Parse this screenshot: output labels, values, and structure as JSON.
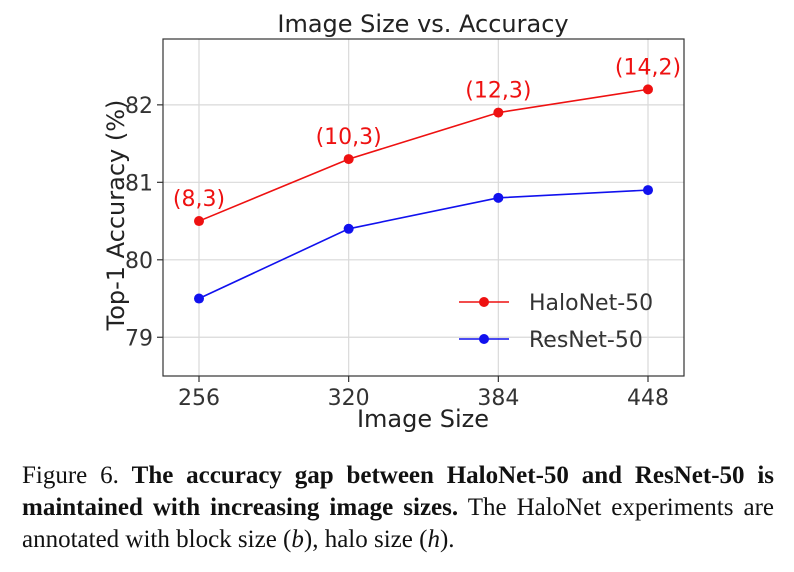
{
  "chart_data": {
    "type": "line",
    "title": "Image Size vs. Accuracy",
    "xlabel": "Image Size",
    "ylabel": "Top-1 Accuracy (%)",
    "categories": [
      "256",
      "320",
      "384",
      "448"
    ],
    "x": [
      256,
      320,
      384,
      448
    ],
    "yticks": [
      "79",
      "80",
      "81",
      "82"
    ],
    "ylim": [
      78.5,
      82.85
    ],
    "grid": true,
    "legend_position": "right",
    "series": [
      {
        "name": "HaloNet-50",
        "color": "#ee1111",
        "values": [
          80.5,
          81.3,
          81.9,
          82.2
        ],
        "annotations": [
          "(8,3)",
          "(10,3)",
          "(12,3)",
          "(14,2)"
        ]
      },
      {
        "name": "ResNet-50",
        "color": "#1111ee",
        "values": [
          79.5,
          80.4,
          80.8,
          80.9
        ]
      }
    ]
  },
  "caption": {
    "label": "Figure 6.",
    "bold": "The accuracy gap between HaloNet-50 and ResNet-50 is maintained with increasing image sizes.",
    "text_before_b": "The HaloNet experiments are annotated with block size (",
    "b_symbol": "b",
    "text_between": "), halo size (",
    "h_symbol": "h",
    "text_end": ")."
  }
}
